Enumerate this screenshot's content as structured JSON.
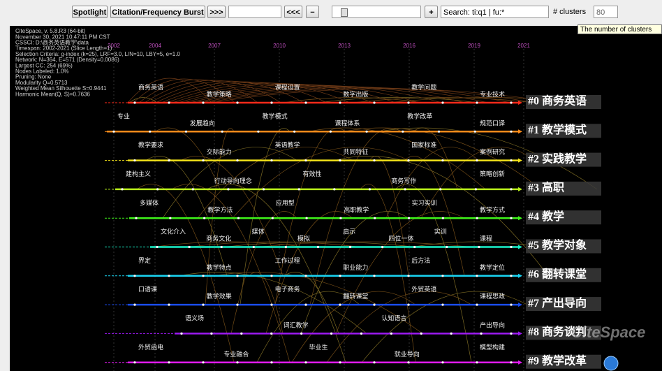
{
  "toolbar": {
    "buttons": [
      "Spotlight",
      "Citation/Frequency Burst",
      ">>>",
      "<<<"
    ],
    "search": "Search: ti:q1 | fu:*",
    "clusters_label": "# clusters",
    "clusters_value": "80",
    "tooltip": "The number of clusters"
  },
  "info": [
    "CiteSpace, v. 5.8.R3 (64-bit)",
    "November 30, 2021 10:47:11 PM CST",
    "CSSCI: D:\\商务英语教学\\data",
    "Timespan: 2002-2021 (Slice Length=1)",
    "Selection Criteria: g-index (k=25), LRF=3.0, L/N=10, LBY=5, e=1.0",
    "Network: N=364, E=571 (Density=0.0086)",
    "Largest CC: 254 (69%)",
    "Nodes Labeled: 1.0%",
    "Pruning: None",
    "Modularity Q=0.5713",
    "Weighted Mean Silhouette S=0.9441",
    "Harmonic Mean(Q, S)=0.7636"
  ],
  "timeline": {
    "years": [
      "2002",
      "2004",
      "2007",
      "2010",
      "2013",
      "2016",
      "2019",
      "2021"
    ],
    "clusters": [
      {
        "label": "#0 商务英语",
        "color": "#ff2a1a",
        "keywords": [
          "商务英语",
          "教学策略",
          "课程设置",
          "数字出版",
          "教学问题",
          "专业技术"
        ]
      },
      {
        "label": "#1 教学模式",
        "color": "#ff8c1a",
        "keywords": [
          "专业",
          "发展趋向",
          "教学模式",
          "课程体系",
          "教学改革",
          "规范口译"
        ]
      },
      {
        "label": "#2 实践教学",
        "color": "#f2e21a",
        "keywords": [
          "教学要求",
          "交际能力",
          "英语教学",
          "共同特征",
          "国家标准",
          "案例研究"
        ]
      },
      {
        "label": "#3 高职",
        "color": "#b8f21a",
        "keywords": [
          "建构主义",
          "行动导向理念",
          "有效性",
          "商务写作",
          "策略创新"
        ]
      },
      {
        "label": "#4 教学",
        "color": "#3ff21a",
        "keywords": [
          "多媒体",
          "教学方法",
          "应用型",
          "高职教学",
          "实习实训",
          "教学方式"
        ]
      },
      {
        "label": "#5 教学对象",
        "color": "#1af2c9",
        "keywords": [
          "文化介入",
          "商务文化",
          "媒体",
          "模拟",
          "启示",
          "四位一体",
          "实训",
          "课程"
        ]
      },
      {
        "label": "#6 翻转课堂",
        "color": "#1ad4f2",
        "keywords": [
          "界定",
          "教学特点",
          "工作过程",
          "职业能力",
          "后方法",
          "教学定位"
        ]
      },
      {
        "label": "#7 产出导向",
        "color": "#1a4cf2",
        "keywords": [
          "口语课",
          "教学效果",
          "电子商务",
          "翻转课堂",
          "外贸英语",
          "课程思政"
        ]
      },
      {
        "label": "#8 商务谈判",
        "color": "#9c1af2",
        "keywords": [
          "语义场",
          "词汇教学",
          "认知语言",
          "产出导向"
        ]
      },
      {
        "label": "#9 教学改革",
        "color": "#e21af2",
        "keywords": [
          "外贸函电",
          "专业融合",
          "毕业生",
          "就业导向",
          "模型构建"
        ]
      }
    ]
  },
  "watermark": "CiteSpace"
}
